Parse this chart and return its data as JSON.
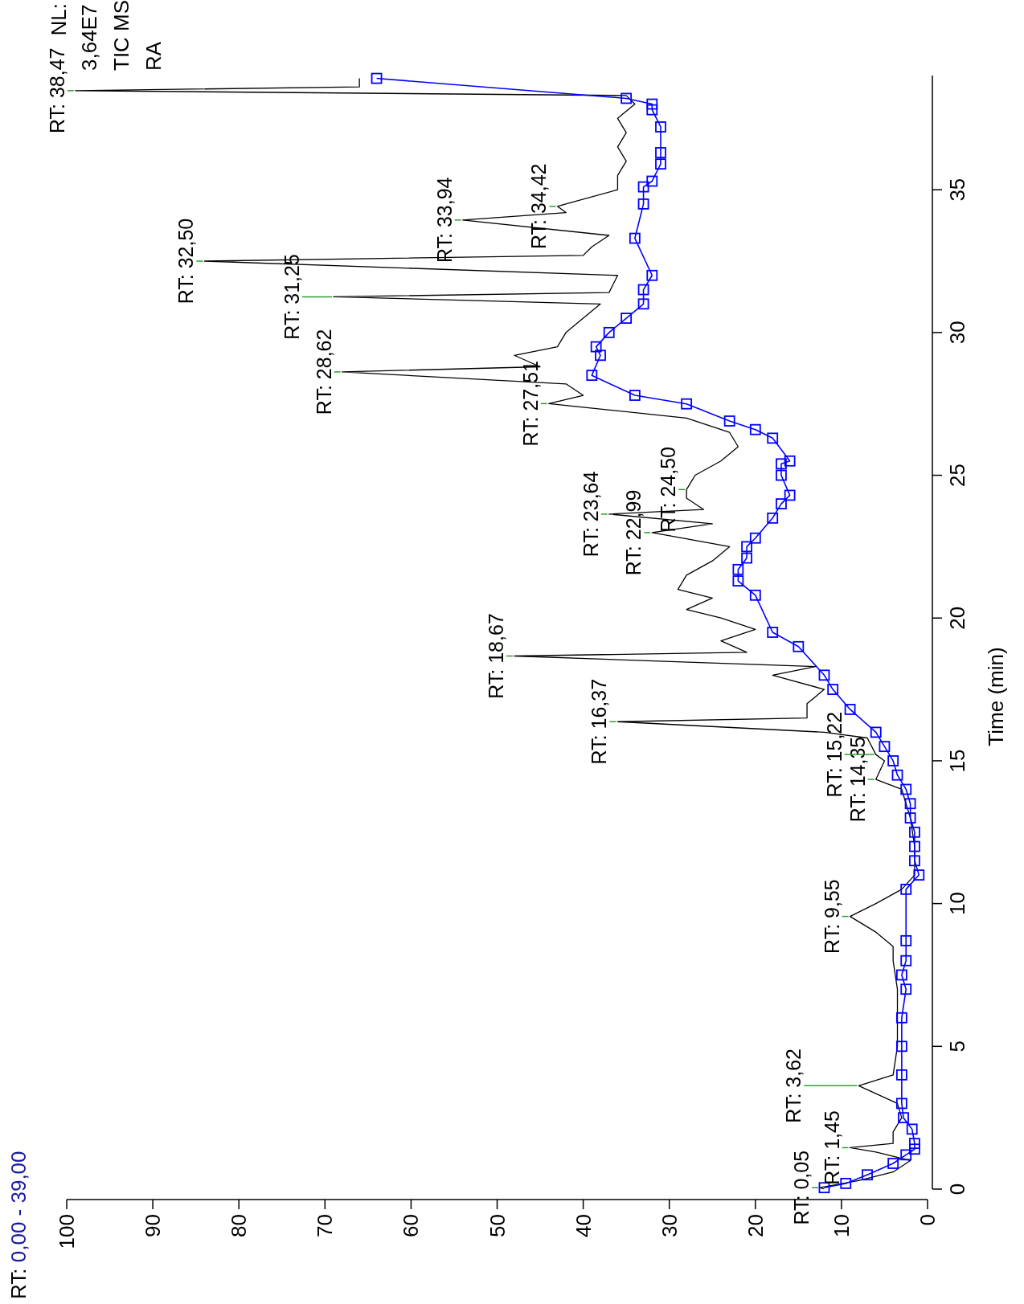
{
  "chart_data": {
    "type": "line",
    "title": "RT: 0,00 - 39,00",
    "ylabel": "Time (min)",
    "xlim": [
      100,
      0
    ],
    "ylim": [
      0,
      39
    ],
    "yticks": [
      0,
      5,
      10,
      15,
      20,
      25,
      30,
      35
    ],
    "xticks": [
      0,
      10,
      20,
      30,
      40,
      50,
      60,
      70,
      80,
      90,
      100
    ],
    "grid": false,
    "annotations": [
      "NL:",
      "3,64E7",
      "TIC  MS",
      "RA",
      {
        "text": "RT: 0,05",
        "x": 12.5,
        "y": 0.05
      },
      {
        "text": "RT: 1,45",
        "x": 9,
        "y": 1.45
      },
      {
        "text": "RT: 3,62",
        "x": 8,
        "y": 3.62
      },
      {
        "text": "RT: 9,55",
        "x": 9,
        "y": 9.55
      },
      {
        "text": "RT: 14,35",
        "x": 6,
        "y": 14.35
      },
      {
        "text": "RT: 15,22",
        "x": 6,
        "y": 15.22
      },
      {
        "text": "RT: 16,37",
        "x": 36,
        "y": 16.37
      },
      {
        "text": "RT: 18,67",
        "x": 48,
        "y": 18.67
      },
      {
        "text": "RT: 22,99",
        "x": 32,
        "y": 22.99
      },
      {
        "text": "RT: 23,64",
        "x": 37,
        "y": 23.64
      },
      {
        "text": "RT: 24,50",
        "x": 28,
        "y": 24.5
      },
      {
        "text": "RT: 27,51",
        "x": 44,
        "y": 27.51
      },
      {
        "text": "RT: 28,62",
        "x": 68,
        "y": 28.62
      },
      {
        "text": "RT: 31,25",
        "x": 69,
        "y": 31.25
      },
      {
        "text": "RT: 32,50",
        "x": 84,
        "y": 32.5
      },
      {
        "text": "RT: 33,94",
        "x": 54,
        "y": 33.94
      },
      {
        "text": "RT: 34,42",
        "x": 43,
        "y": 34.42
      },
      {
        "text": "RT: 38,47",
        "x": 99,
        "y": 38.47
      }
    ],
    "series": [
      {
        "type": "line",
        "color": "#000000",
        "marker": "none",
        "values": [
          0,
          0.05,
          0.3,
          0.6,
          1.0,
          1.3,
          1.45,
          1.6,
          2.0,
          2.5,
          3.0,
          3.62,
          4.0,
          5.0,
          6.0,
          7.0,
          8.0,
          8.5,
          9.0,
          9.55,
          10.0,
          10.5,
          11,
          12,
          13,
          14,
          14.35,
          15,
          15.22,
          15.8,
          16.0,
          16.37,
          16.5,
          17.0,
          17.5,
          18.0,
          18.3,
          18.67,
          18.8,
          19.2,
          19.6,
          20.0,
          20.3,
          20.7,
          21.0,
          21.5,
          22.0,
          22.5,
          22.99,
          23.3,
          23.64,
          23.8,
          24.2,
          24.5,
          25.0,
          25.5,
          26.0,
          26.5,
          27.0,
          27.51,
          27.8,
          28.2,
          28.62,
          28.8,
          29.2,
          29.5,
          30.0,
          30.5,
          31.0,
          31.25,
          31.4,
          32.0,
          32.5,
          32.7,
          33.0,
          33.4,
          33.94,
          34.2,
          34.42,
          35.0,
          35.5,
          36,
          36.5,
          37,
          37.5,
          38.0,
          38.3,
          38.47,
          38.6,
          38.9
        ],
        "x": [
          12,
          12.5,
          8,
          4,
          2,
          6,
          9,
          4,
          4,
          3,
          3.5,
          8,
          4,
          3.5,
          3.5,
          3.5,
          4,
          4,
          6,
          9,
          6,
          3,
          1.5,
          1.5,
          2,
          3,
          6,
          5,
          6,
          7,
          12,
          36,
          14,
          14,
          12,
          18,
          13,
          48,
          21,
          24,
          20,
          24,
          28,
          25,
          29,
          28,
          25,
          23,
          32,
          25,
          37,
          26,
          28,
          28,
          27,
          24,
          22,
          23,
          28,
          44,
          40,
          42,
          68,
          45,
          48,
          43,
          42,
          40,
          38,
          69,
          37,
          36,
          84,
          40,
          39,
          37,
          54,
          42,
          43,
          36,
          36,
          35,
          36,
          35,
          36,
          34,
          35,
          99,
          66,
          66
        ]
      },
      {
        "type": "line",
        "color": "#0000ff",
        "marker": "square",
        "values": [
          0.05,
          0.2,
          0.5,
          0.9,
          1.2,
          1.4,
          1.6,
          2.1,
          2.5,
          3.0,
          4,
          5,
          6,
          7,
          7.5,
          8,
          8.7,
          10.5,
          11,
          11.5,
          12,
          12.5,
          13,
          13.5,
          14,
          14.5,
          15,
          15.5,
          16,
          16.8,
          17.5,
          18,
          19,
          19.5,
          20.8,
          21.3,
          21.7,
          22.1,
          22.5,
          22.8,
          23.5,
          24,
          24.3,
          25.0,
          25.4,
          25.5,
          26.3,
          26.6,
          26.9,
          27.5,
          27.8,
          28.5,
          29.2,
          29.5,
          30.0,
          30.5,
          31,
          31.5,
          32,
          33.3,
          34.5,
          35.1,
          35.3,
          35.9,
          36.3,
          37.2,
          37.8,
          38.0,
          38.2,
          38.9
        ],
        "x": [
          12,
          9.5,
          7,
          4,
          2.5,
          1.5,
          1.5,
          1.8,
          2.8,
          3,
          3,
          3,
          3,
          2.5,
          3,
          2.5,
          2.5,
          2.5,
          1,
          1.5,
          1.5,
          1.5,
          2,
          2,
          2.5,
          3.5,
          4,
          5,
          6,
          9,
          11,
          12,
          15,
          18,
          20,
          22,
          22,
          21,
          21,
          20,
          18,
          17,
          16,
          17,
          17,
          16,
          18,
          20,
          23,
          28,
          34,
          39,
          38,
          38.5,
          37,
          35,
          33,
          33,
          32,
          34,
          33,
          33,
          32,
          31,
          31,
          31,
          32,
          32,
          35,
          64
        ]
      }
    ]
  }
}
